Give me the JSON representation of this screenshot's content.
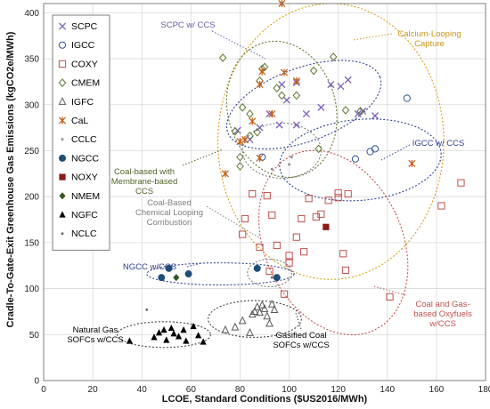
{
  "chart_data": {
    "type": "scatter",
    "xlabel": "LCOE, Standard Conditions ($US2016/MWh)",
    "ylabel": "Cradle-To-Gate-Exit Greenhouse Gas Emissions (kgCO2e/MWh)",
    "xlim": [
      0,
      180
    ],
    "ylim": [
      0,
      410
    ],
    "xticks": [
      "0",
      "20",
      "40",
      "60",
      "80",
      "100",
      "120",
      "140",
      "160",
      "180"
    ],
    "yticks": [
      "0",
      "50",
      "100",
      "150",
      "200",
      "250",
      "300",
      "350",
      "400"
    ],
    "grid": true,
    "legend_position": "top-left",
    "series": [
      {
        "name": "SCPC",
        "marker": "x",
        "color": "#7b5fb8",
        "points": [
          [
            79,
            272
          ],
          [
            84,
            262
          ],
          [
            88,
            275
          ],
          [
            92,
            290
          ],
          [
            96,
            278
          ],
          [
            99,
            305
          ],
          [
            103,
            324
          ],
          [
            103,
            278
          ],
          [
            107,
            290
          ],
          [
            113,
            297
          ],
          [
            117,
            322
          ],
          [
            121,
            320
          ],
          [
            124,
            327
          ],
          [
            128,
            290
          ],
          [
            130,
            293
          ],
          [
            135,
            288
          ],
          [
            97,
            322
          ]
        ]
      },
      {
        "name": "IGCC",
        "marker": "circle-open",
        "color": "#2f5597",
        "points": [
          [
            127,
            241
          ],
          [
            133,
            249
          ],
          [
            135,
            252
          ],
          [
            148,
            307
          ],
          [
            89,
            243
          ]
        ]
      },
      {
        "name": "COXY",
        "marker": "square-open",
        "color": "#c0504d",
        "points": [
          [
            81,
            159
          ],
          [
            82,
            176
          ],
          [
            85,
            203
          ],
          [
            91,
            201
          ],
          [
            93,
            180
          ],
          [
            95,
            147
          ],
          [
            100,
            136
          ],
          [
            100,
            128
          ],
          [
            103,
            156
          ],
          [
            105,
            176
          ],
          [
            108,
            198
          ],
          [
            111,
            178
          ],
          [
            113,
            181
          ],
          [
            116,
            196
          ],
          [
            120,
            199
          ],
          [
            120,
            204
          ],
          [
            122,
            138
          ],
          [
            123,
            120
          ],
          [
            124,
            203
          ],
          [
            141,
            91
          ],
          [
            162,
            190
          ],
          [
            170,
            215
          ],
          [
            92,
            119
          ],
          [
            98,
            94
          ],
          [
            88,
            145
          ],
          [
            106,
            140
          ]
        ]
      },
      {
        "name": "CMEM",
        "marker": "diamond-open",
        "color": "#5d7732",
        "points": [
          [
            73,
            351
          ],
          [
            78,
            271
          ],
          [
            80,
            233
          ],
          [
            80,
            243
          ],
          [
            81,
            297
          ],
          [
            84,
            266
          ],
          [
            84,
            290
          ],
          [
            88,
            326
          ],
          [
            89,
            339
          ],
          [
            90,
            341
          ],
          [
            95,
            318
          ],
          [
            97,
            310
          ],
          [
            103,
            310
          ],
          [
            110,
            337
          ],
          [
            112,
            252
          ],
          [
            118,
            352
          ],
          [
            129,
            293
          ],
          [
            123,
            294
          ],
          [
            87,
            270
          ]
        ]
      },
      {
        "name": "IGFC",
        "marker": "triangle-open",
        "color": "#595959",
        "points": [
          [
            74,
            55
          ],
          [
            78,
            58
          ],
          [
            81,
            65
          ],
          [
            84,
            52
          ],
          [
            85,
            72
          ],
          [
            86,
            75
          ],
          [
            87,
            80
          ],
          [
            88,
            74
          ],
          [
            89,
            82
          ],
          [
            90,
            78
          ],
          [
            91,
            70
          ],
          [
            92,
            62
          ],
          [
            93,
            83
          ],
          [
            94,
            77
          ]
        ]
      },
      {
        "name": "CaL",
        "marker": "asterisk",
        "color": "#c55a11",
        "points": [
          [
            74,
            225
          ],
          [
            80,
            260
          ],
          [
            82,
            262
          ],
          [
            85,
            282
          ],
          [
            88,
            322
          ],
          [
            89,
            336
          ],
          [
            93,
            290
          ],
          [
            97,
            410
          ],
          [
            98,
            335
          ],
          [
            103,
            326
          ],
          [
            150,
            236
          ],
          [
            88,
            242
          ]
        ]
      },
      {
        "name": "CCLC",
        "marker": "dot-small",
        "color": "#888888",
        "points": [
          [
            83,
            265
          ],
          [
            84,
            263
          ],
          [
            100,
            235
          ],
          [
            101,
            243
          ],
          [
            93,
            230
          ]
        ]
      },
      {
        "name": "NGCC",
        "marker": "circle-filled",
        "color": "#1f4e79",
        "points": [
          [
            48,
            112
          ],
          [
            51,
            122
          ],
          [
            59,
            116
          ],
          [
            87,
            122
          ],
          [
            95,
            112
          ]
        ]
      },
      {
        "name": "NOXY",
        "marker": "square-filled",
        "color": "#8b1a1a",
        "points": [
          [
            115,
            167
          ]
        ]
      },
      {
        "name": "NMEM",
        "marker": "diamond-filled",
        "color": "#375623",
        "points": [
          [
            54,
            112
          ]
        ]
      },
      {
        "name": "NGFC",
        "marker": "triangle-filled",
        "color": "#000000",
        "points": [
          [
            35,
            43
          ],
          [
            45,
            47
          ],
          [
            47,
            52
          ],
          [
            49,
            55
          ],
          [
            50,
            44
          ],
          [
            52,
            57
          ],
          [
            53,
            51
          ],
          [
            55,
            48
          ],
          [
            57,
            55
          ],
          [
            58,
            43
          ],
          [
            61,
            59
          ],
          [
            63,
            49
          ],
          [
            65,
            42
          ]
        ]
      },
      {
        "name": "NCLC",
        "marker": "dot-small",
        "color": "#666666",
        "points": [
          [
            42,
            77
          ],
          [
            93,
            112
          ]
        ]
      }
    ],
    "ellipses": [
      {
        "label": "SCPC w/ CCS",
        "color": "#2e3f8f",
        "cx": 106,
        "cy": 300,
        "rx": 33,
        "ry": 40,
        "angle": -20
      },
      {
        "label": "IGCC w/ CCS",
        "color": "#2e3f8f",
        "cx": 129,
        "cy": 240,
        "rx": 33,
        "ry": 44,
        "angle": -5
      },
      {
        "label": "Calcium-Looping Capture",
        "color": "#d4a017",
        "cx": 117,
        "cy": 260,
        "rx": 46,
        "ry": 150,
        "angle": 0
      },
      {
        "label": "Coal-based with Membrane-based CCS",
        "color": "#5d7732",
        "cx": 97,
        "cy": 295,
        "rx": 22,
        "ry": 75,
        "angle": -15
      },
      {
        "label": "Coal-Based Chemical Looping Combustion",
        "color": "#7f7f7f",
        "cx": 97,
        "cy": 250,
        "rx": 16,
        "ry": 30,
        "angle": 0
      },
      {
        "label": "Coal and Gas-based Oxyfuels w/CCS",
        "color": "#c0504d",
        "cx": 118,
        "cy": 150,
        "rx": 28,
        "ry": 105,
        "angle": -25
      },
      {
        "label": "NGCC w/CCS",
        "color": "#2e3f8f",
        "cx": 72,
        "cy": 116,
        "rx": 30,
        "ry": 12,
        "angle": 0
      },
      {
        "label": "NGCC w/CCS (small)",
        "color": "#7f7f7f",
        "cx": 92,
        "cy": 117,
        "rx": 9,
        "ry": 15,
        "angle": 0
      },
      {
        "label": "Natural Gas SOFCs w/CCS",
        "color": "#404040",
        "cx": 49,
        "cy": 50,
        "rx": 19,
        "ry": 14,
        "angle": 0
      },
      {
        "label": "Gasified Coal SOFCs w/CCS",
        "color": "#404040",
        "cx": 86,
        "cy": 67,
        "rx": 19,
        "ry": 20,
        "angle": 0
      }
    ],
    "annotations": [
      {
        "text": [
          "SCPC w/ CCS"
        ],
        "color": "#6a5aa8"
      },
      {
        "text": [
          "Calcium-Looping",
          "Capture"
        ],
        "color": "#c8961a"
      },
      {
        "text": [
          "Coal-based with",
          "Membrane-based",
          "CCS"
        ],
        "color": "#4f6228"
      },
      {
        "text": [
          "IGCC w/ CCS"
        ],
        "color": "#2e3f8f"
      },
      {
        "text": [
          "Coal-Based",
          "Chemical Looping",
          "Combustion"
        ],
        "color": "#7f7f7f"
      },
      {
        "text": [
          "NGCC w/CCS"
        ],
        "color": "#2e3f8f"
      },
      {
        "text": [
          "Coal and Gas-",
          "based Oxyfuels",
          "w/CCS"
        ],
        "color": "#c0504d"
      },
      {
        "text": [
          "Natural Gas",
          "SOFCs w/CCS"
        ],
        "color": "#000000"
      },
      {
        "text": [
          "Gasified Coal",
          "SOFCs w/CCS"
        ],
        "color": "#000000"
      }
    ]
  }
}
